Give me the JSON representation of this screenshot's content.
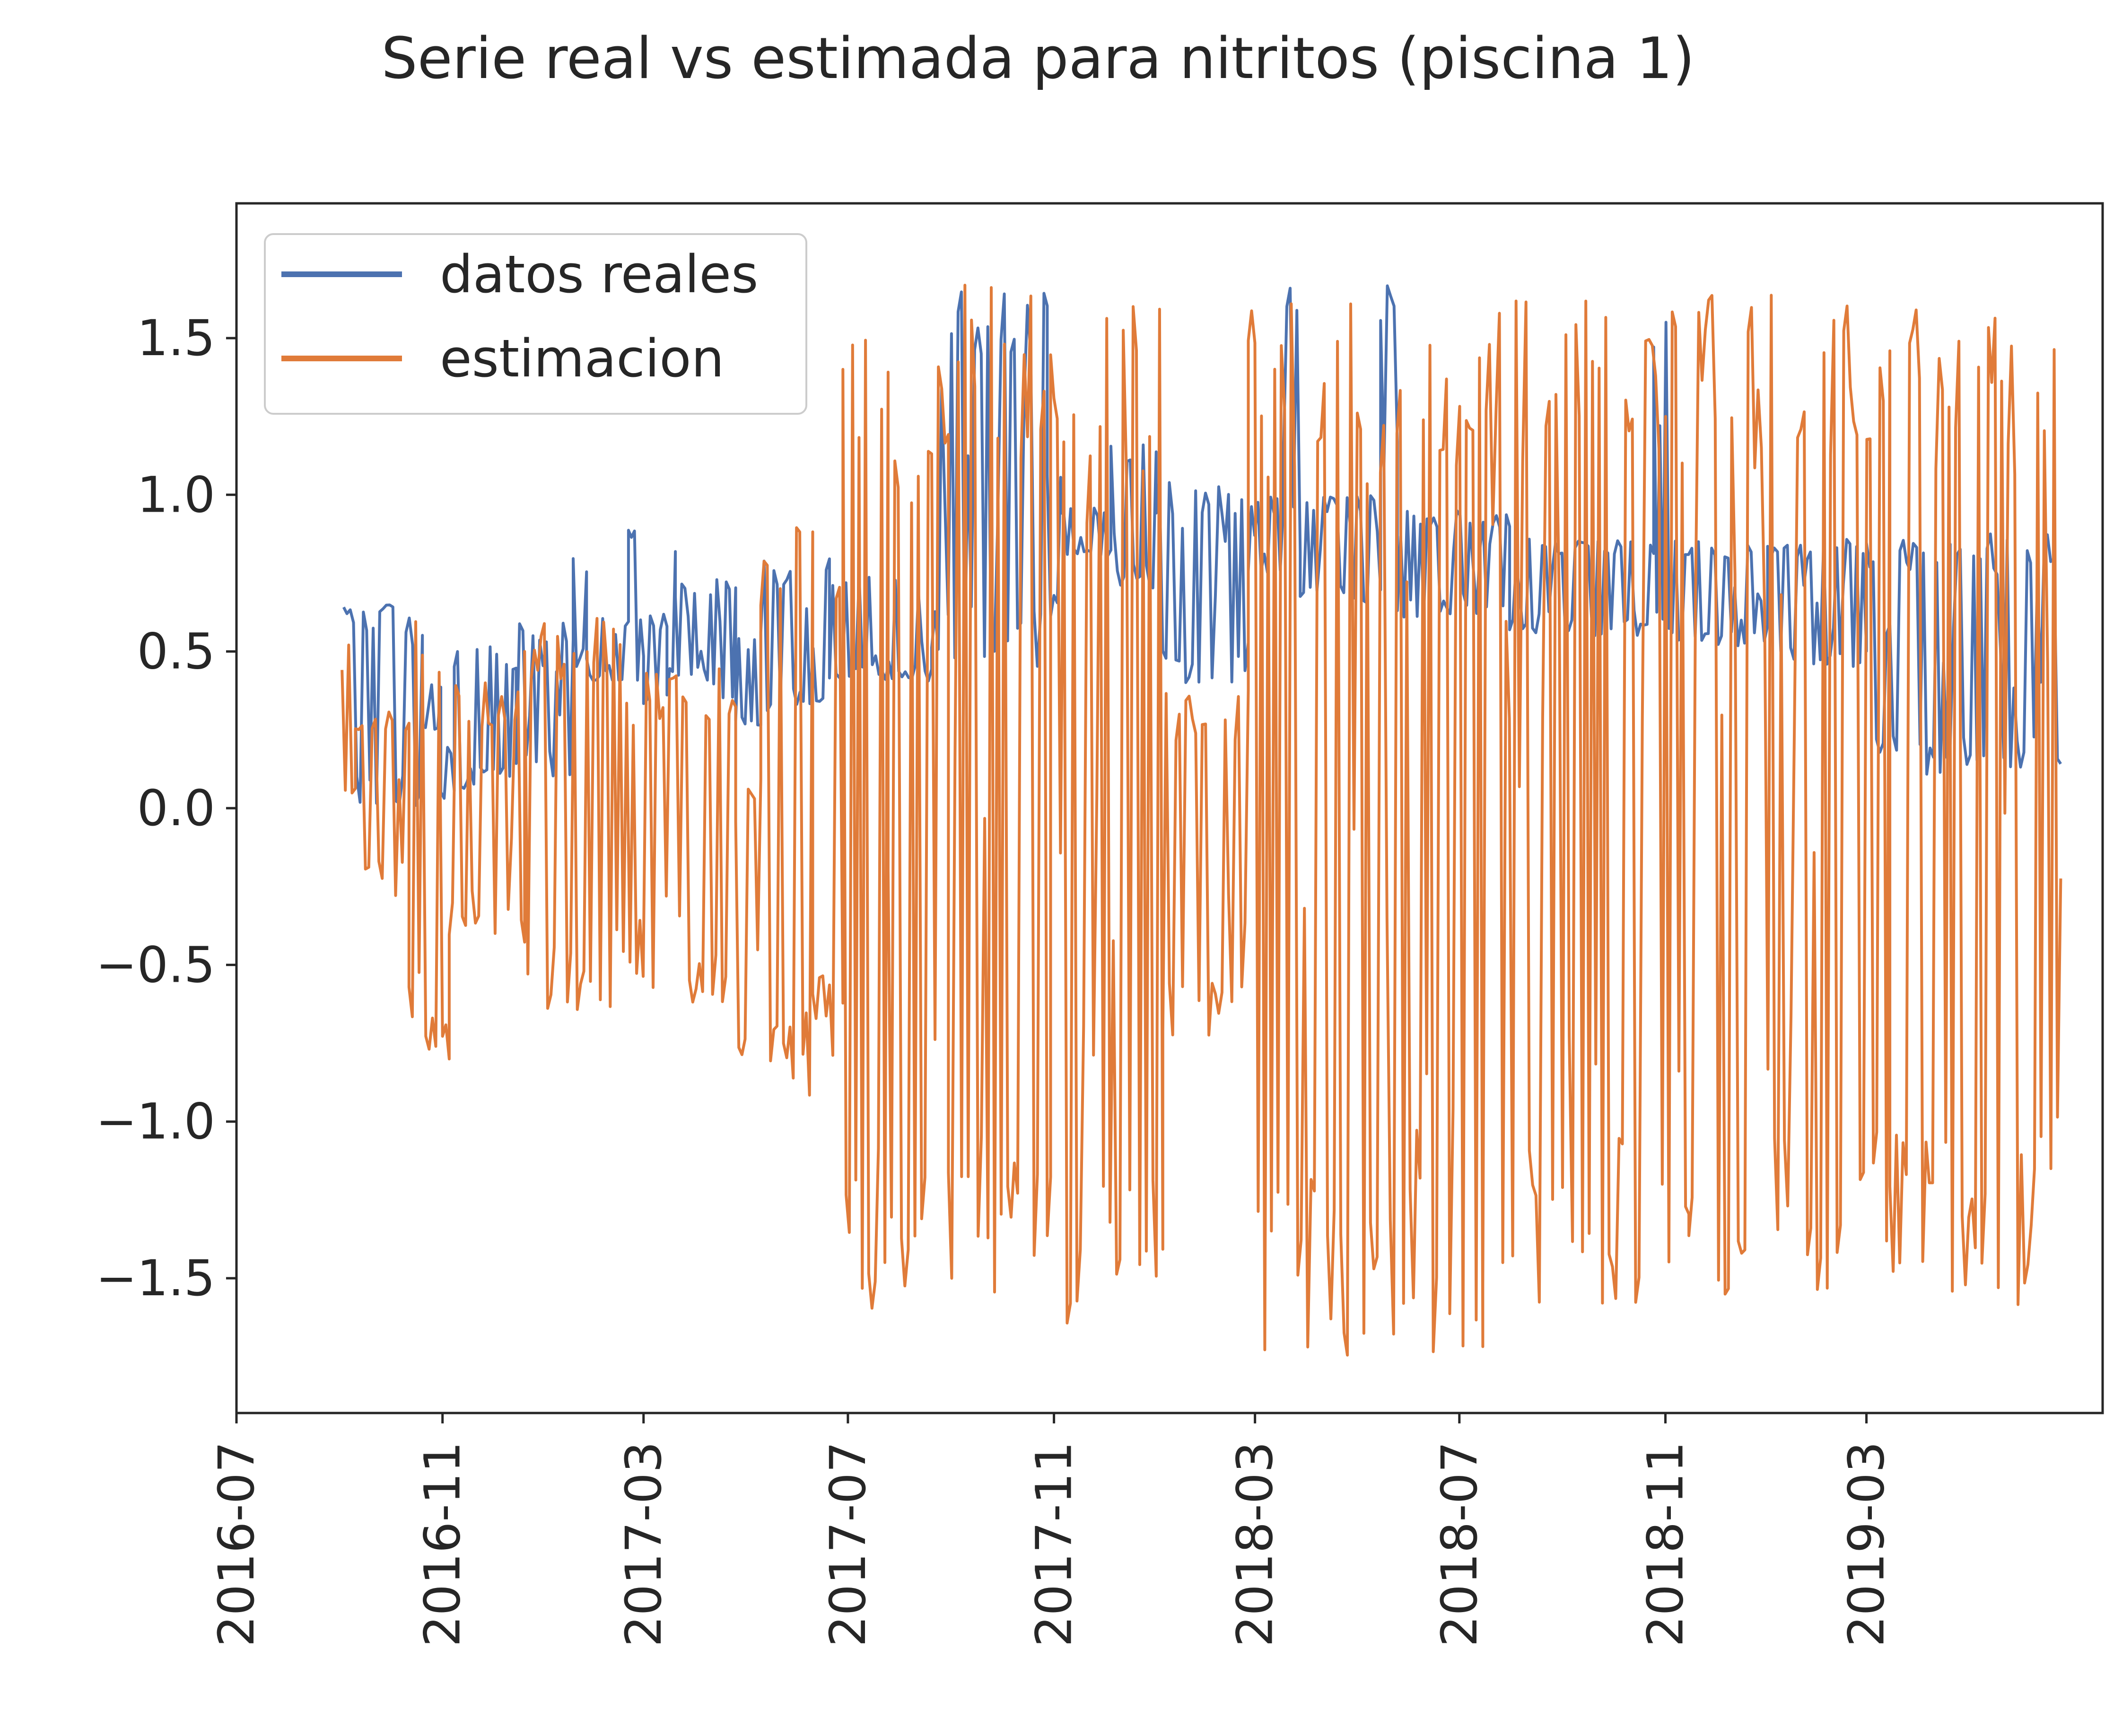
{
  "chart_data": {
    "type": "line",
    "title": "Serie real vs estimada para nitritos (piscina 1)",
    "xlabel": "",
    "ylabel": "",
    "x_axis_type": "date",
    "xlim": [
      "2016-07-01",
      "2019-07-20"
    ],
    "ylim": [
      -1.93,
      1.93
    ],
    "x_ticks": [
      "2016-07",
      "2016-11",
      "2017-03",
      "2017-07",
      "2017-11",
      "2018-03",
      "2018-07",
      "2018-11",
      "2019-03"
    ],
    "y_ticks": [
      1.5,
      1.0,
      0.5,
      0.0,
      -0.5,
      -1.0,
      -1.5
    ],
    "y_tick_labels": [
      "1.5",
      "1.0",
      "0.5",
      "0.0",
      "−0.5",
      "−1.0",
      "−1.5"
    ],
    "grid": false,
    "legend_position": "upper-left",
    "series": [
      {
        "name": "datos reales",
        "color": "#4c72b0",
        "segments": [
          {
            "start": "2016-09-03",
            "end": "2016-10-20",
            "low": 0.0,
            "high": 0.65
          },
          {
            "start": "2016-10-20",
            "end": "2016-10-31",
            "low": 0.25,
            "high": 0.4
          },
          {
            "start": "2016-10-31",
            "end": "2016-11-08",
            "low": 0.03,
            "high": 0.2
          },
          {
            "start": "2016-11-08",
            "end": "2016-12-15",
            "low": 0.05,
            "high": 0.52
          },
          {
            "start": "2016-12-15",
            "end": "2017-01-18",
            "low": 0.1,
            "high": 0.6
          },
          {
            "start": "2017-01-18",
            "end": "2017-01-26",
            "low": 0.45,
            "high": 0.82
          },
          {
            "start": "2017-01-26",
            "end": "2017-02-20",
            "low": 0.4,
            "high": 0.62
          },
          {
            "start": "2017-02-20",
            "end": "2017-03-01",
            "low": 0.4,
            "high": 0.95
          },
          {
            "start": "2017-03-01",
            "end": "2017-03-15",
            "low": 0.33,
            "high": 0.62
          },
          {
            "start": "2017-03-15",
            "end": "2017-03-20",
            "low": 0.35,
            "high": 0.9
          },
          {
            "start": "2017-03-20",
            "end": "2017-04-10",
            "low": 0.4,
            "high": 0.73
          },
          {
            "start": "2017-04-10",
            "end": "2017-04-25",
            "low": 0.35,
            "high": 0.74
          },
          {
            "start": "2017-04-25",
            "end": "2017-05-10",
            "low": 0.25,
            "high": 0.55
          },
          {
            "start": "2017-05-10",
            "end": "2017-06-20",
            "low": 0.3,
            "high": 0.8
          },
          {
            "start": "2017-06-20",
            "end": "2017-08-20",
            "low": 0.4,
            "high": 0.75
          },
          {
            "start": "2017-08-20",
            "end": "2017-10-28",
            "low": 0.45,
            "high": 1.65
          },
          {
            "start": "2017-10-28",
            "end": "2017-11-05",
            "low": 0.6,
            "high": 1.07
          },
          {
            "start": "2017-11-05",
            "end": "2017-12-05",
            "low": 0.8,
            "high": 0.96
          },
          {
            "start": "2017-12-05",
            "end": "2018-01-01",
            "low": 0.7,
            "high": 1.17
          },
          {
            "start": "2018-01-01",
            "end": "2018-02-25",
            "low": 0.4,
            "high": 1.05
          },
          {
            "start": "2018-02-25",
            "end": "2018-03-18",
            "low": 0.75,
            "high": 1.0
          },
          {
            "start": "2018-03-18",
            "end": "2018-03-28",
            "low": 0.8,
            "high": 1.75
          },
          {
            "start": "2018-03-28",
            "end": "2018-05-15",
            "low": 0.65,
            "high": 1.0
          },
          {
            "start": "2018-05-15",
            "end": "2018-05-25",
            "low": 0.8,
            "high": 1.7
          },
          {
            "start": "2018-05-25",
            "end": "2018-07-31",
            "low": 0.6,
            "high": 0.95
          },
          {
            "start": "2018-07-31",
            "end": "2018-10-25",
            "low": 0.55,
            "high": 0.86
          },
          {
            "start": "2018-10-25",
            "end": "2018-11-05",
            "low": 0.55,
            "high": 1.57
          },
          {
            "start": "2018-11-05",
            "end": "2019-01-01",
            "low": 0.5,
            "high": 0.86
          },
          {
            "start": "2019-01-01",
            "end": "2019-03-01",
            "low": 0.45,
            "high": 0.86
          },
          {
            "start": "2019-03-01",
            "end": "2019-04-20",
            "low": 0.1,
            "high": 0.86
          },
          {
            "start": "2019-04-20",
            "end": "2019-06-25",
            "low": 0.1,
            "high": 0.88
          }
        ]
      },
      {
        "name": "estimacion",
        "color": "#e07b39",
        "segments": [
          {
            "start": "2016-09-02",
            "end": "2016-09-10",
            "low": 0.0,
            "high": 0.53
          },
          {
            "start": "2016-09-10",
            "end": "2016-10-12",
            "low": -0.28,
            "high": 0.35
          },
          {
            "start": "2016-10-12",
            "end": "2016-11-05",
            "low": -0.82,
            "high": 0.66
          },
          {
            "start": "2016-11-05",
            "end": "2016-12-20",
            "low": -0.45,
            "high": 0.4
          },
          {
            "start": "2016-12-20",
            "end": "2017-02-15",
            "low": -0.65,
            "high": 0.61
          },
          {
            "start": "2017-02-15",
            "end": "2017-04-25",
            "low": -0.62,
            "high": 0.45
          },
          {
            "start": "2017-04-25",
            "end": "2017-05-10",
            "low": -0.88,
            "high": 0.12
          },
          {
            "start": "2017-05-10",
            "end": "2017-06-10",
            "low": -0.93,
            "high": 0.93
          },
          {
            "start": "2017-06-10",
            "end": "2017-06-28",
            "low": -0.8,
            "high": 0.85
          },
          {
            "start": "2017-06-28",
            "end": "2017-07-25",
            "low": -1.6,
            "high": 1.55
          },
          {
            "start": "2017-07-25",
            "end": "2017-08-30",
            "low": -1.55,
            "high": 1.5
          },
          {
            "start": "2017-08-30",
            "end": "2017-10-30",
            "low": -1.58,
            "high": 1.67
          },
          {
            "start": "2017-10-30",
            "end": "2018-01-05",
            "low": -1.68,
            "high": 1.62
          },
          {
            "start": "2018-01-05",
            "end": "2018-02-25",
            "low": -0.75,
            "high": 0.4
          },
          {
            "start": "2018-02-25",
            "end": "2018-07-15",
            "low": -1.75,
            "high": 1.62
          },
          {
            "start": "2018-07-15",
            "end": "2018-11-15",
            "low": -1.58,
            "high": 1.62
          },
          {
            "start": "2018-11-15",
            "end": "2019-03-15",
            "low": -1.6,
            "high": 1.65
          },
          {
            "start": "2019-03-15",
            "end": "2019-06-25",
            "low": -1.6,
            "high": 1.62
          }
        ]
      }
    ]
  }
}
